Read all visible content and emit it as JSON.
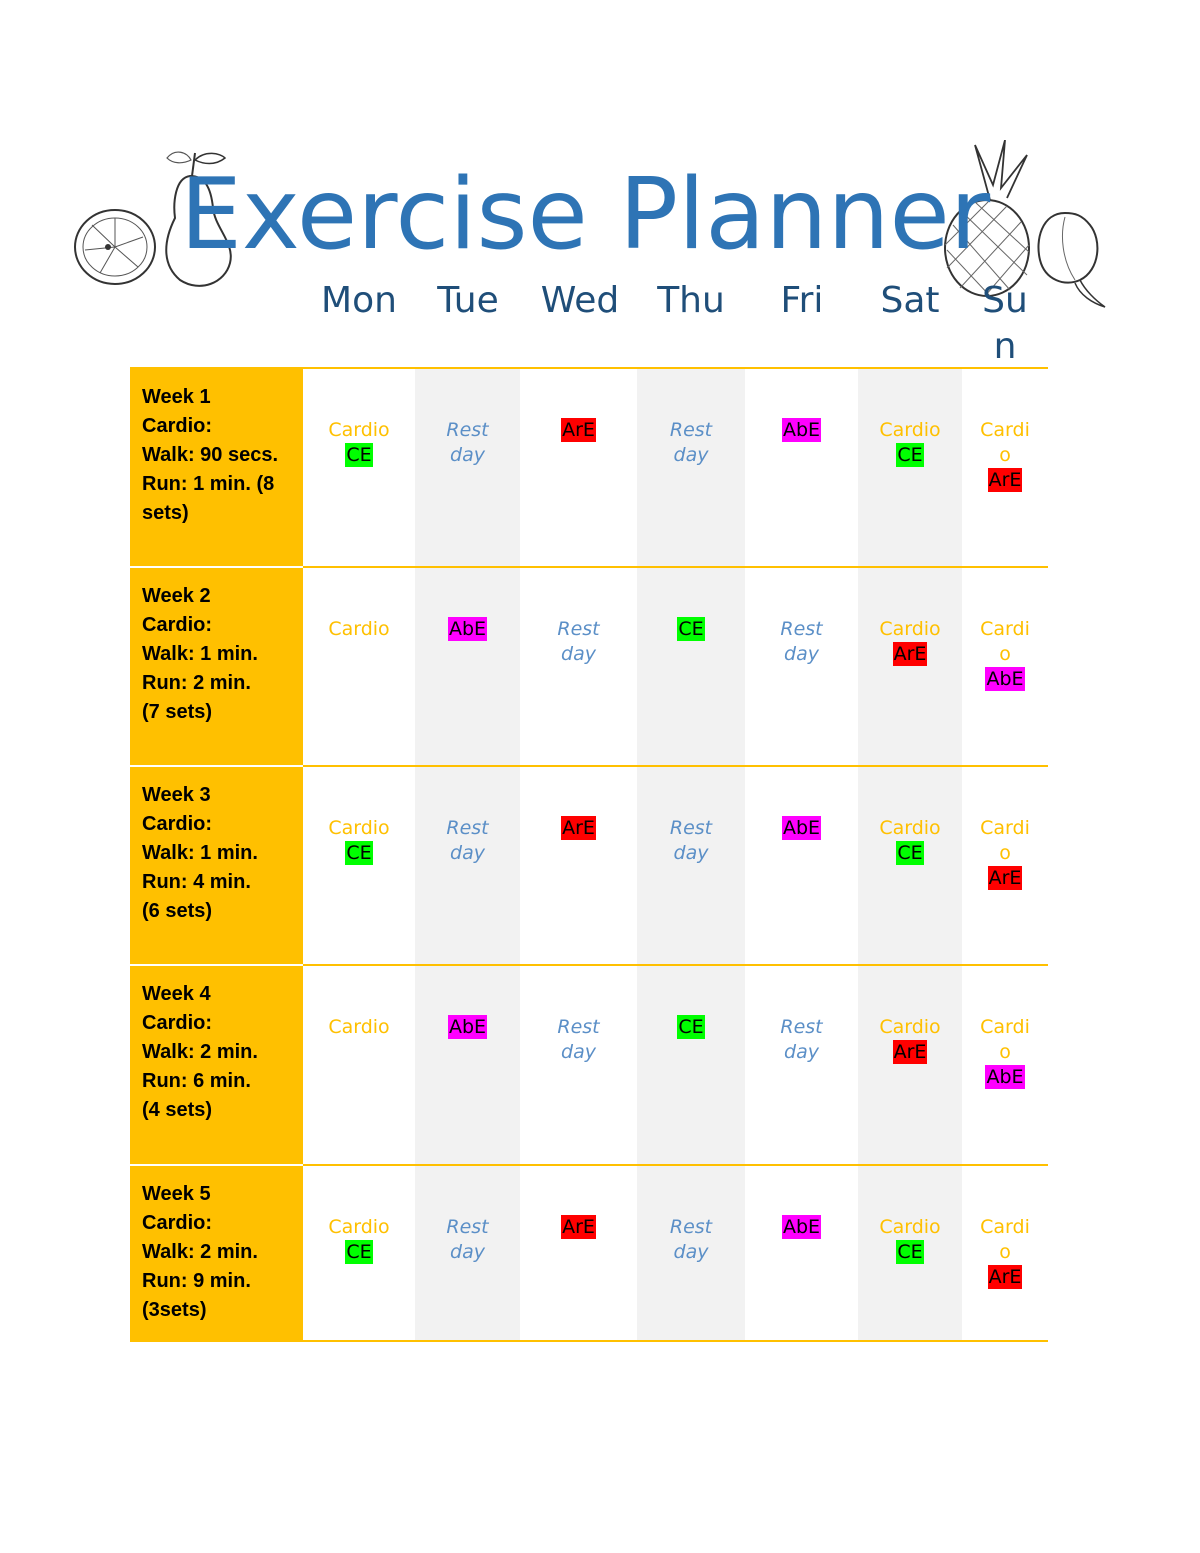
{
  "title": "Exercise Planner",
  "days": [
    "Mon",
    "Tue",
    "Wed",
    "Thu",
    "Fri",
    "Sat",
    "Sun"
  ],
  "sun_split": [
    "Su",
    "n"
  ],
  "colors": {
    "title": "#2e74b5",
    "day_header": "#1f4e79",
    "week_column": "#ffc000",
    "cardio_text": "#ffc000",
    "rest_text": "#5b8fc7",
    "CE": "#00ff00",
    "ArE": "#ff0000",
    "AbE": "#ff00ff"
  },
  "labels": {
    "cardio": "Cardio",
    "cardio_split": [
      "Cardi",
      "o"
    ],
    "rest": [
      "Rest",
      "day"
    ],
    "CE": "CE",
    "ArE": "ArE",
    "AbE": "AbE"
  },
  "weeks": [
    {
      "lines": [
        "Week 1",
        "Cardio:",
        "Walk: 90 secs.",
        "Run: 1 min. (8",
        "sets)"
      ],
      "cells": [
        {
          "type": "cardio",
          "tag": "CE"
        },
        {
          "type": "rest"
        },
        {
          "type": "tag",
          "tag": "ArE"
        },
        {
          "type": "rest"
        },
        {
          "type": "tag",
          "tag": "AbE"
        },
        {
          "type": "cardio",
          "tag": "CE"
        },
        {
          "type": "cardio",
          "tag": "ArE"
        }
      ]
    },
    {
      "lines": [
        "Week 2",
        "Cardio:",
        "Walk: 1 min.",
        "Run: 2 min.",
        "(7 sets)"
      ],
      "cells": [
        {
          "type": "cardio"
        },
        {
          "type": "tag",
          "tag": "AbE"
        },
        {
          "type": "rest"
        },
        {
          "type": "tag",
          "tag": "CE"
        },
        {
          "type": "rest"
        },
        {
          "type": "cardio",
          "tag": "ArE"
        },
        {
          "type": "cardio",
          "tag": "AbE"
        }
      ]
    },
    {
      "lines": [
        "Week 3",
        "Cardio:",
        "Walk: 1 min.",
        "Run: 4 min.",
        "(6 sets)"
      ],
      "cells": [
        {
          "type": "cardio",
          "tag": "CE"
        },
        {
          "type": "rest"
        },
        {
          "type": "tag",
          "tag": "ArE"
        },
        {
          "type": "rest"
        },
        {
          "type": "tag",
          "tag": "AbE"
        },
        {
          "type": "cardio",
          "tag": "CE"
        },
        {
          "type": "cardio",
          "tag": "ArE"
        }
      ]
    },
    {
      "lines": [
        "Week 4",
        "Cardio:",
        "Walk: 2 min.",
        "Run: 6 min.",
        "(4 sets)"
      ],
      "cells": [
        {
          "type": "cardio"
        },
        {
          "type": "tag",
          "tag": "AbE"
        },
        {
          "type": "rest"
        },
        {
          "type": "tag",
          "tag": "CE"
        },
        {
          "type": "rest"
        },
        {
          "type": "cardio",
          "tag": "ArE"
        },
        {
          "type": "cardio",
          "tag": "AbE"
        }
      ]
    },
    {
      "lines": [
        "Week 5",
        "Cardio:",
        "Walk: 2 min.",
        "Run: 9 min.",
        "(3sets)"
      ],
      "cells": [
        {
          "type": "cardio",
          "tag": "CE"
        },
        {
          "type": "rest"
        },
        {
          "type": "tag",
          "tag": "ArE"
        },
        {
          "type": "rest"
        },
        {
          "type": "tag",
          "tag": "AbE"
        },
        {
          "type": "cardio",
          "tag": "CE"
        },
        {
          "type": "cardio",
          "tag": "ArE"
        }
      ]
    }
  ],
  "decorations": [
    "orange-slice-icon",
    "pear-icon",
    "pineapple-icon",
    "peach-icon"
  ]
}
